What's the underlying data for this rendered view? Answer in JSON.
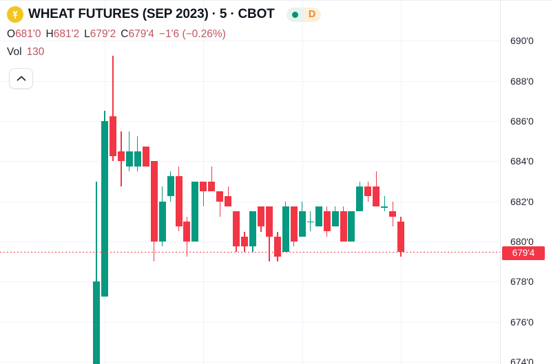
{
  "header": {
    "title": "WHEAT FUTURES (SEP 2023) · 5 · CBOT",
    "interval_badge": "D",
    "ohlc": {
      "open_label": "O",
      "open": "681'0",
      "high_label": "H",
      "high": "681'2",
      "low_label": "L",
      "low": "679'2",
      "close_label": "C",
      "close": "679'4",
      "change": "−1'6 (−0.26%)"
    },
    "volume_label": "Vol",
    "volume_value": "130"
  },
  "price_axis": {
    "ticks": [
      {
        "label": "690'0",
        "value": 690
      },
      {
        "label": "688'0",
        "value": 688
      },
      {
        "label": "686'0",
        "value": 686
      },
      {
        "label": "684'0",
        "value": 684
      },
      {
        "label": "682'0",
        "value": 682
      },
      {
        "label": "680'0",
        "value": 680
      },
      {
        "label": "678'0",
        "value": 678
      },
      {
        "label": "676'0",
        "value": 676
      },
      {
        "label": "674'0",
        "value": 674
      }
    ],
    "last_price": {
      "label": "679'4",
      "value": 679.5
    }
  },
  "colors": {
    "up": "#089981",
    "down": "#F23645",
    "last_line": "#F23645",
    "value_text": "#C0545E",
    "grid": "#F0F3FA"
  },
  "chart_data": {
    "type": "candlestick",
    "title": "WHEAT FUTURES (SEP 2023)",
    "interval": "5",
    "exchange": "CBOT",
    "grid": true,
    "ylim": [
      673.9,
      692.0
    ],
    "legend_position": "top-left",
    "y_axis_side": "right",
    "last_close": 679.5,
    "candles": [
      {
        "o": 673.5,
        "h": 683.0,
        "l": 673.5,
        "c": 678.0
      },
      {
        "o": 677.25,
        "h": 686.5,
        "l": 677.25,
        "c": 686.0
      },
      {
        "o": 686.25,
        "h": 689.25,
        "l": 684.0,
        "c": 684.25
      },
      {
        "o": 684.5,
        "h": 685.5,
        "l": 682.75,
        "c": 684.0
      },
      {
        "o": 683.75,
        "h": 685.5,
        "l": 683.5,
        "c": 684.5
      },
      {
        "o": 683.75,
        "h": 685.25,
        "l": 683.5,
        "c": 684.5
      },
      {
        "o": 684.75,
        "h": 684.75,
        "l": 683.75,
        "c": 683.75
      },
      {
        "o": 684.0,
        "h": 684.0,
        "l": 679.0,
        "c": 680.0
      },
      {
        "o": 680.0,
        "h": 682.75,
        "l": 679.75,
        "c": 682.0
      },
      {
        "o": 682.25,
        "h": 683.5,
        "l": 682.0,
        "c": 683.25
      },
      {
        "o": 683.25,
        "h": 683.75,
        "l": 680.5,
        "c": 680.75
      },
      {
        "o": 681.0,
        "h": 681.25,
        "l": 679.25,
        "c": 680.0
      },
      {
        "o": 680.0,
        "h": 683.0,
        "l": 680.0,
        "c": 683.0
      },
      {
        "o": 683.0,
        "h": 683.0,
        "l": 681.75,
        "c": 682.5
      },
      {
        "o": 683.0,
        "h": 683.75,
        "l": 682.5,
        "c": 682.5
      },
      {
        "o": 682.5,
        "h": 682.5,
        "l": 681.25,
        "c": 682.0
      },
      {
        "o": 682.25,
        "h": 682.75,
        "l": 681.75,
        "c": 681.75
      },
      {
        "o": 681.5,
        "h": 681.5,
        "l": 679.5,
        "c": 679.75
      },
      {
        "o": 680.25,
        "h": 680.5,
        "l": 679.5,
        "c": 679.75
      },
      {
        "o": 679.75,
        "h": 681.5,
        "l": 679.5,
        "c": 681.5
      },
      {
        "o": 681.75,
        "h": 681.75,
        "l": 680.5,
        "c": 680.75
      },
      {
        "o": 681.75,
        "h": 681.75,
        "l": 679.0,
        "c": 680.25
      },
      {
        "o": 680.25,
        "h": 680.5,
        "l": 679.0,
        "c": 679.25
      },
      {
        "o": 679.5,
        "h": 682.0,
        "l": 679.5,
        "c": 681.75
      },
      {
        "o": 681.75,
        "h": 681.75,
        "l": 679.75,
        "c": 680.0
      },
      {
        "o": 680.25,
        "h": 682.0,
        "l": 680.25,
        "c": 681.5
      },
      {
        "o": 681.0,
        "h": 681.5,
        "l": 680.5,
        "c": 681.0
      },
      {
        "o": 680.75,
        "h": 681.75,
        "l": 680.75,
        "c": 681.75
      },
      {
        "o": 681.5,
        "h": 681.75,
        "l": 680.25,
        "c": 680.5
      },
      {
        "o": 680.75,
        "h": 681.75,
        "l": 680.75,
        "c": 681.5
      },
      {
        "o": 681.5,
        "h": 681.75,
        "l": 680.0,
        "c": 680.0
      },
      {
        "o": 680.0,
        "h": 681.5,
        "l": 680.0,
        "c": 681.5
      },
      {
        "o": 681.5,
        "h": 683.0,
        "l": 681.5,
        "c": 682.75
      },
      {
        "o": 682.75,
        "h": 683.0,
        "l": 682.0,
        "c": 682.25
      },
      {
        "o": 682.75,
        "h": 683.5,
        "l": 681.75,
        "c": 681.75
      },
      {
        "o": 681.75,
        "h": 682.25,
        "l": 681.5,
        "c": 681.75
      },
      {
        "o": 681.5,
        "h": 682.0,
        "l": 680.75,
        "c": 681.25
      },
      {
        "o": 681.0,
        "h": 681.25,
        "l": 679.25,
        "c": 679.5
      }
    ]
  }
}
